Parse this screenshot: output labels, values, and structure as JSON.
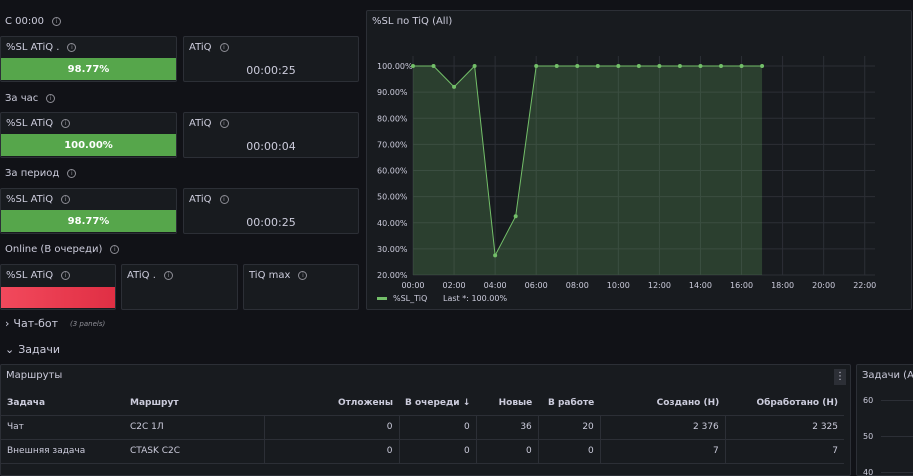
{
  "rows": {
    "since_midnight": "С 00:00",
    "per_hour": "За час",
    "per_period": "За период",
    "online": "Online (В очереди)"
  },
  "stats": {
    "sl_1_title": "%SL ATiQ .",
    "sl_1_value": "98.77%",
    "atiq_1_title": "ATiQ",
    "atiq_1_value": "00:00:25",
    "sl_2_title": "%SL ATiQ",
    "sl_2_value": "100.00%",
    "atiq_2_title": "ATiQ",
    "atiq_2_value": "00:00:04",
    "sl_3_title": "%SL ATiQ",
    "sl_3_value": "98.77%",
    "atiq_3_title": "ATiQ",
    "atiq_3_value": "00:00:25",
    "sl_4_title": "%SL ATiQ",
    "atiq_4_title": "ATiQ .",
    "tiq_max_title": "TiQ max"
  },
  "colors": {
    "green": "#56a64b",
    "red": "#f2495c",
    "accent_line": "#73bf69"
  },
  "chart_panel": {
    "title": "%SL по TiQ (All)",
    "legend_label": "%SL_TiQ",
    "legend_last": "Last *: 100.00%"
  },
  "chart_data": {
    "type": "area",
    "title": "%SL по TiQ (All)",
    "x": [
      "00:00",
      "01:00",
      "02:00",
      "03:00",
      "04:00",
      "05:00",
      "06:00",
      "07:00",
      "08:00",
      "09:00",
      "10:00",
      "11:00",
      "12:00",
      "13:00",
      "14:00",
      "15:00",
      "16:00",
      "17:00"
    ],
    "series": [
      {
        "name": "%SL_TiQ",
        "values": [
          100,
          100,
          92,
          100,
          27.5,
          42.5,
          100,
          100,
          100,
          100,
          100,
          100,
          100,
          100,
          100,
          100,
          100,
          100
        ]
      }
    ],
    "y_ticks": [
      "100.00%",
      "90.00%",
      "80.00%",
      "70.00%",
      "60.00%",
      "50.00%",
      "40.00%",
      "30.00%",
      "20.00%"
    ],
    "x_ticks": [
      "00:00",
      "02:00",
      "04:00",
      "06:00",
      "08:00",
      "10:00",
      "12:00",
      "14:00",
      "16:00",
      "18:00",
      "20:00",
      "22:00"
    ],
    "ylim": [
      20,
      100
    ],
    "xlim_hours": [
      0,
      22.5
    ],
    "grid": true,
    "legend": "bottom-left"
  },
  "sections": {
    "chatbot": "Чат-бот",
    "chatbot_sub": "(3 panels)",
    "tasks": "Задачи"
  },
  "routes_panel": {
    "title": "Маршруты",
    "columns": [
      "Задача",
      "Маршрут",
      "Отложены",
      "В очереди ↓",
      "Новые",
      "В работе",
      "Создано (Н)",
      "Обработано (Н)"
    ],
    "rows": [
      [
        "Чат",
        "C2C 1Л",
        "0",
        "0",
        "36",
        "20",
        "2 376",
        "2 325"
      ],
      [
        "Внешняя задача",
        "CTASK C2C",
        "0",
        "0",
        "0",
        "0",
        "7",
        "7"
      ]
    ]
  },
  "tasks_panel": {
    "title": "Задачи (All)",
    "y_ticks": [
      "60",
      "50",
      "40"
    ]
  },
  "icons": {
    "info": "info-icon",
    "chevron_right": "chevron-right-icon",
    "chevron_down": "chevron-down-icon",
    "menu": "vertical-menu-icon"
  }
}
